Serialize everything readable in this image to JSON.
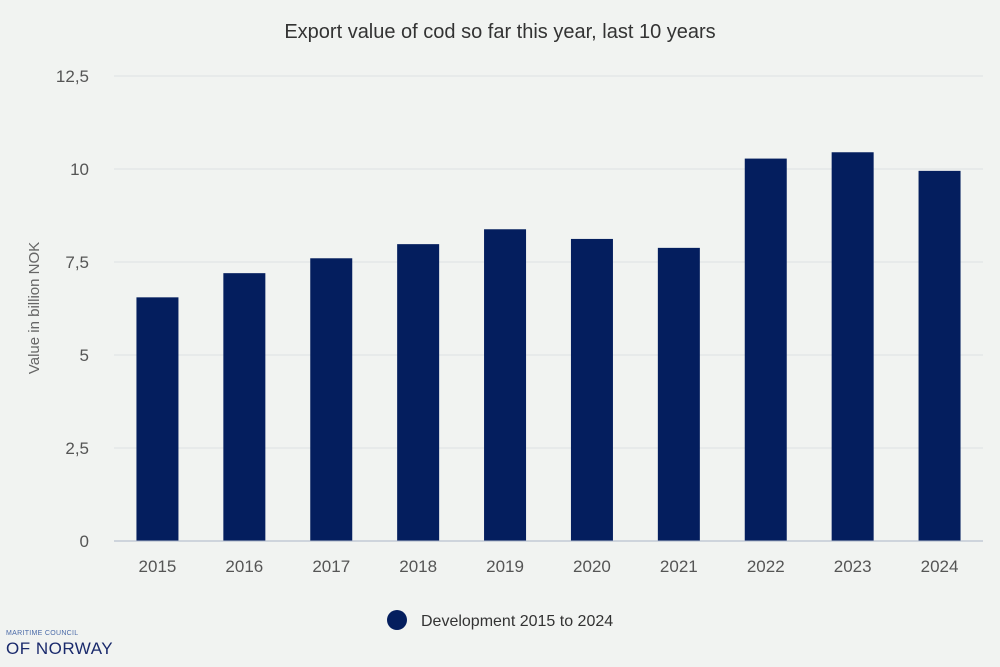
{
  "chart_data": {
    "type": "bar",
    "title": "Export value of cod so far this year, last 10 years",
    "ylabel": "Value in billion NOK",
    "xlabel": "",
    "categories": [
      "2015",
      "2016",
      "2017",
      "2018",
      "2019",
      "2020",
      "2021",
      "2022",
      "2023",
      "2024"
    ],
    "series": [
      {
        "name": "Development 2015 to 2024",
        "values": [
          6.55,
          7.2,
          7.6,
          7.98,
          8.38,
          8.12,
          7.88,
          10.28,
          10.45,
          9.95
        ],
        "color": "#041e5e"
      }
    ],
    "ylim": [
      0,
      12.5
    ],
    "yticks": [
      "0",
      "2,5",
      "5",
      "7,5",
      "10",
      "12,5"
    ],
    "grid": true,
    "legend": "bottom-center"
  },
  "logo": {
    "line1": "MARITIME COUNCIL",
    "line2": "OF NORWAY"
  }
}
